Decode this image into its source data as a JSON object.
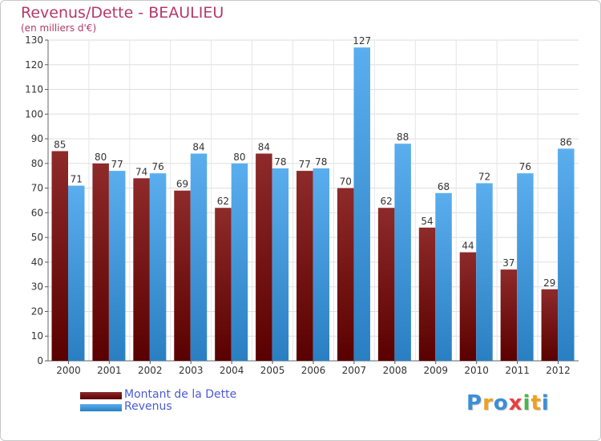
{
  "header": {
    "title": "Revenus/Dette - BEAULIEU",
    "subtitle": "(en milliers d'€)"
  },
  "chart_data": {
    "type": "bar",
    "categories": [
      "2000",
      "2001",
      "2002",
      "2003",
      "2004",
      "2005",
      "2006",
      "2007",
      "2008",
      "2009",
      "2010",
      "2011",
      "2012"
    ],
    "series": [
      {
        "name": "Montant de la Dette",
        "values": [
          85,
          80,
          74,
          69,
          62,
          84,
          77,
          70,
          62,
          54,
          44,
          37,
          29
        ],
        "color": "#8b1a1a"
      },
      {
        "name": "Revenus",
        "values": [
          71,
          77,
          76,
          84,
          80,
          78,
          78,
          127,
          88,
          68,
          72,
          76,
          86
        ],
        "color": "#4aa3e8"
      }
    ],
    "title": "Revenus/Dette - BEAULIEU",
    "ylabel": "(en milliers d'€)",
    "ylim": [
      0,
      130
    ],
    "yticks": [
      0,
      10,
      20,
      30,
      40,
      50,
      60,
      70,
      80,
      90,
      100,
      110,
      120,
      130
    ],
    "grid": true,
    "legend_position": "bottom-left"
  },
  "legend": {
    "items": [
      {
        "label": "Montant de la Dette",
        "color": "#8b1a1a"
      },
      {
        "label": "Revenus",
        "color": "#4aa3e8"
      }
    ]
  },
  "logo": {
    "text": "Proxiti",
    "letters": [
      {
        "ch": "P",
        "color": "#3b8fd6"
      },
      {
        "ch": "r",
        "color": "#f0a020"
      },
      {
        "ch": "o",
        "color": "#3b8fd6"
      },
      {
        "ch": "x",
        "color": "#e84040"
      },
      {
        "ch": "i",
        "color": "#49b849"
      },
      {
        "ch": "t",
        "color": "#f0a020"
      },
      {
        "ch": "i",
        "color": "#3b8fd6"
      }
    ]
  }
}
